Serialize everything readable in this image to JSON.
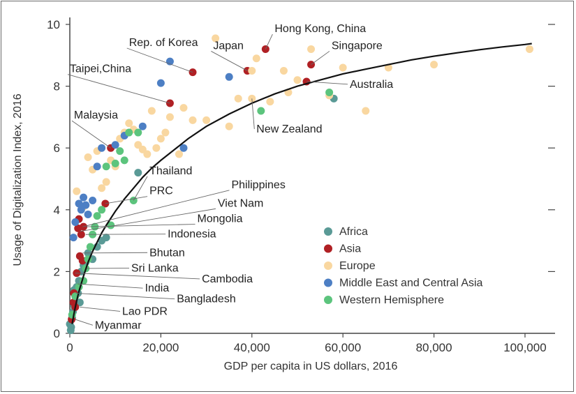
{
  "chart_data": {
    "type": "scatter",
    "xlabel": "GDP per capita in US dollars, 2016",
    "ylabel": "Usage of Digitalization Index, 2016",
    "xlim": [
      0,
      110000
    ],
    "ylim": [
      0,
      10
    ],
    "x_ticks": [
      {
        "value": 0,
        "label": "0"
      },
      {
        "value": 20000,
        "label": "20,000"
      },
      {
        "value": 40000,
        "label": "40,000"
      },
      {
        "value": 60000,
        "label": "60,000"
      },
      {
        "value": 80000,
        "label": "80,000"
      },
      {
        "value": 100000,
        "label": "100,000"
      }
    ],
    "y_ticks": [
      {
        "value": 0,
        "label": "0"
      },
      {
        "value": 2,
        "label": "2"
      },
      {
        "value": 4,
        "label": "4"
      },
      {
        "value": 6,
        "label": "6"
      },
      {
        "value": 8,
        "label": "8"
      },
      {
        "value": 10,
        "label": "10"
      }
    ],
    "grid": false,
    "legend_position": "right",
    "series": [
      {
        "name": "Africa",
        "color": "#5a9a96",
        "points": [
          [
            300,
            0.2
          ],
          [
            500,
            0.5
          ],
          [
            700,
            0.7
          ],
          [
            900,
            0.9
          ],
          [
            1200,
            1.2
          ],
          [
            1500,
            1.5
          ],
          [
            2000,
            1.7
          ],
          [
            2500,
            2.0
          ],
          [
            3000,
            2.2
          ],
          [
            3500,
            2.3
          ],
          [
            4000,
            2.6
          ],
          [
            5000,
            2.4
          ],
          [
            6000,
            2.8
          ],
          [
            7000,
            3.0
          ],
          [
            8000,
            3.1
          ],
          [
            15000,
            5.2
          ],
          [
            58000,
            7.6
          ],
          [
            0,
            0.3
          ],
          [
            200,
            0.1
          ],
          [
            900,
            1.4
          ],
          [
            1800,
            1.3
          ],
          [
            2200,
            1.0
          ]
        ]
      },
      {
        "name": "Asia",
        "color": "#b02024",
        "points": [
          [
            400,
            0.45
          ],
          [
            800,
            1.0
          ],
          [
            1200,
            0.85
          ],
          [
            900,
            1.3
          ],
          [
            1500,
            1.95
          ],
          [
            2200,
            2.5
          ],
          [
            2800,
            2.35
          ],
          [
            1800,
            3.4
          ],
          [
            3000,
            3.45
          ],
          [
            2000,
            3.7
          ],
          [
            7800,
            4.2
          ],
          [
            9000,
            6.0
          ],
          [
            22000,
            7.45
          ],
          [
            27000,
            8.45
          ],
          [
            39000,
            8.5
          ],
          [
            43000,
            9.2
          ],
          [
            52000,
            8.15
          ],
          [
            53000,
            8.7
          ],
          [
            2500,
            3.2
          ]
        ]
      },
      {
        "name": "Europe",
        "color": "#f9d7a0",
        "points": [
          [
            1500,
            4.6
          ],
          [
            3000,
            4.1
          ],
          [
            4000,
            5.7
          ],
          [
            5000,
            5.3
          ],
          [
            6000,
            5.9
          ],
          [
            7000,
            4.7
          ],
          [
            8000,
            4.9
          ],
          [
            9000,
            5.6
          ],
          [
            10000,
            5.4
          ],
          [
            11000,
            6.3
          ],
          [
            12000,
            6.5
          ],
          [
            13000,
            6.8
          ],
          [
            14000,
            6.6
          ],
          [
            15000,
            6.1
          ],
          [
            16000,
            5.95
          ],
          [
            17000,
            5.8
          ],
          [
            18000,
            7.2
          ],
          [
            19000,
            6.0
          ],
          [
            20000,
            6.3
          ],
          [
            21000,
            6.5
          ],
          [
            22000,
            7.0
          ],
          [
            24000,
            5.8
          ],
          [
            25000,
            7.3
          ],
          [
            27000,
            6.9
          ],
          [
            30000,
            6.9
          ],
          [
            32000,
            9.55
          ],
          [
            35000,
            6.7
          ],
          [
            37000,
            7.6
          ],
          [
            40000,
            7.6
          ],
          [
            40000,
            8.5
          ],
          [
            41000,
            8.9
          ],
          [
            44000,
            7.5
          ],
          [
            47000,
            8.5
          ],
          [
            48000,
            7.8
          ],
          [
            50000,
            8.2
          ],
          [
            53000,
            9.2
          ],
          [
            57000,
            7.7
          ],
          [
            60000,
            8.6
          ],
          [
            65000,
            7.2
          ],
          [
            70000,
            8.6
          ],
          [
            80000,
            8.7
          ],
          [
            101000,
            9.2
          ]
        ]
      },
      {
        "name": "Middle East and Central Asia",
        "color": "#4d7fc4",
        "points": [
          [
            800,
            3.1
          ],
          [
            1200,
            3.6
          ],
          [
            2000,
            4.2
          ],
          [
            2500,
            4.0
          ],
          [
            3000,
            4.4
          ],
          [
            3500,
            4.15
          ],
          [
            4000,
            3.85
          ],
          [
            5000,
            4.3
          ],
          [
            6000,
            5.4
          ],
          [
            7000,
            6.0
          ],
          [
            10000,
            6.1
          ],
          [
            12000,
            6.4
          ],
          [
            16000,
            6.7
          ],
          [
            20000,
            8.1
          ],
          [
            22000,
            8.8
          ],
          [
            25000,
            6.0
          ],
          [
            35000,
            8.3
          ]
        ]
      },
      {
        "name": "Western Hemisphere",
        "color": "#5cc47d",
        "points": [
          [
            500,
            0.6
          ],
          [
            1200,
            1.2
          ],
          [
            2000,
            1.5
          ],
          [
            3000,
            1.7
          ],
          [
            3500,
            2.1
          ],
          [
            4000,
            2.4
          ],
          [
            4500,
            2.8
          ],
          [
            5000,
            3.2
          ],
          [
            5500,
            3.45
          ],
          [
            6000,
            3.8
          ],
          [
            7000,
            4.0
          ],
          [
            8000,
            5.4
          ],
          [
            9000,
            3.5
          ],
          [
            10000,
            5.5
          ],
          [
            11000,
            5.9
          ],
          [
            12000,
            5.6
          ],
          [
            13000,
            6.5
          ],
          [
            14000,
            4.3
          ],
          [
            15000,
            6.5
          ],
          [
            42000,
            7.2
          ],
          [
            57000,
            7.8
          ]
        ]
      }
    ],
    "trend_curve": {
      "color": "#111111",
      "points": [
        [
          500,
          0.3
        ],
        [
          1000,
          0.7
        ],
        [
          1500,
          1.05
        ],
        [
          2000,
          1.35
        ],
        [
          2500,
          1.6
        ],
        [
          3000,
          1.85
        ],
        [
          4000,
          2.3
        ],
        [
          5000,
          2.65
        ],
        [
          6000,
          2.95
        ],
        [
          7000,
          3.25
        ],
        [
          8000,
          3.5
        ],
        [
          10000,
          3.95
        ],
        [
          12000,
          4.35
        ],
        [
          14000,
          4.7
        ],
        [
          16000,
          5.05
        ],
        [
          18000,
          5.35
        ],
        [
          20000,
          5.6
        ],
        [
          23000,
          5.95
        ],
        [
          26000,
          6.3
        ],
        [
          30000,
          6.7
        ],
        [
          35000,
          7.1
        ],
        [
          40000,
          7.45
        ],
        [
          45000,
          7.75
        ],
        [
          50000,
          8.0
        ],
        [
          55000,
          8.2
        ],
        [
          60000,
          8.4
        ],
        [
          65000,
          8.55
        ],
        [
          70000,
          8.7
        ],
        [
          75000,
          8.85
        ],
        [
          80000,
          8.97
        ],
        [
          85000,
          9.08
        ],
        [
          90000,
          9.18
        ],
        [
          95000,
          9.27
        ],
        [
          100000,
          9.35
        ],
        [
          101500,
          9.38
        ]
      ]
    },
    "annotations": [
      {
        "label": "Hong Kong, China",
        "x": 43000,
        "y": 9.2,
        "lx": 45000,
        "ly": 9.75,
        "anchor": "start",
        "size": 15
      },
      {
        "label": "Rep. of Korea",
        "x": 27000,
        "y": 8.45,
        "lx": 13000,
        "ly": 9.3,
        "anchor": "start",
        "size": 15
      },
      {
        "label": "Japan",
        "x": 39000,
        "y": 8.5,
        "lx": 31500,
        "ly": 9.2,
        "anchor": "start",
        "size": 17
      },
      {
        "label": "Singapore",
        "x": 53000,
        "y": 8.7,
        "lx": 57500,
        "ly": 9.2,
        "anchor": "start",
        "size": 17
      },
      {
        "label": "Taipei,China",
        "x": 22000,
        "y": 7.45,
        "lx": 0,
        "ly": 8.45,
        "anchor": "start",
        "size": 15
      },
      {
        "label": "Australia",
        "x": 52000,
        "y": 8.15,
        "lx": 61500,
        "ly": 7.95,
        "anchor": "start",
        "size": 17
      },
      {
        "label": "Malaysia",
        "x": 9000,
        "y": 6.0,
        "lx": 900,
        "ly": 6.95,
        "anchor": "start",
        "size": 17
      },
      {
        "label": "New Zealand",
        "x": 40000,
        "y": 7.6,
        "lx": 41000,
        "ly": 6.5,
        "anchor": "start",
        "size": 17
      },
      {
        "label": "Thailand",
        "x": 14000,
        "y": 4.3,
        "lx": 17500,
        "ly": 5.15,
        "anchor": "start",
        "size": 17
      },
      {
        "label": "PRC",
        "x": 7800,
        "y": 4.2,
        "lx": 17500,
        "ly": 4.5,
        "anchor": "start",
        "size": 15
      },
      {
        "label": "Philippines",
        "x": 2800,
        "y": 3.45,
        "lx": 35500,
        "ly": 4.7,
        "anchor": "start",
        "size": 17
      },
      {
        "label": "Viet Nam",
        "x": 2200,
        "y": 3.3,
        "lx": 32500,
        "ly": 4.1,
        "anchor": "start",
        "size": 15
      },
      {
        "label": "Mongolia",
        "x": 3500,
        "y": 3.45,
        "lx": 28000,
        "ly": 3.6,
        "anchor": "start",
        "size": 17
      },
      {
        "label": "Indonesia",
        "x": 3500,
        "y": 3.2,
        "lx": 21500,
        "ly": 3.1,
        "anchor": "start",
        "size": 17
      },
      {
        "label": "Bhutan",
        "x": 2800,
        "y": 2.6,
        "lx": 17500,
        "ly": 2.5,
        "anchor": "start",
        "size": 17
      },
      {
        "label": "Sri Lanka",
        "x": 3800,
        "y": 2.1,
        "lx": 13500,
        "ly": 2.0,
        "anchor": "start",
        "size": 17
      },
      {
        "label": "Cambodia",
        "x": 1200,
        "y": 1.95,
        "lx": 29000,
        "ly": 1.65,
        "anchor": "start",
        "size": 17
      },
      {
        "label": "India",
        "x": 1700,
        "y": 1.6,
        "lx": 16500,
        "ly": 1.35,
        "anchor": "start",
        "size": 17
      },
      {
        "label": "Bangladesh",
        "x": 1300,
        "y": 1.3,
        "lx": 23500,
        "ly": 1.0,
        "anchor": "start",
        "size": 17
      },
      {
        "label": "Lao PDR",
        "x": 2200,
        "y": 0.85,
        "lx": 11500,
        "ly": 0.6,
        "anchor": "start",
        "size": 15
      },
      {
        "label": "Myanmar",
        "x": 1200,
        "y": 0.45,
        "lx": 5500,
        "ly": 0.15,
        "anchor": "start",
        "size": 17
      }
    ]
  }
}
